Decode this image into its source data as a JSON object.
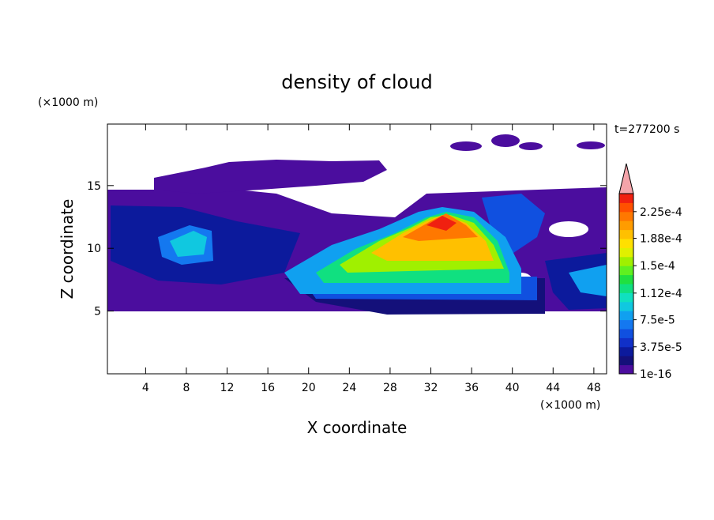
{
  "chart_data": {
    "type": "contour",
    "title": "density of cloud",
    "x_label": "X coordinate",
    "y_label": "Z coordinate",
    "x_unit": "(×1000 m)",
    "y_unit": "(×1000 m)",
    "time_label": "t=277200 s",
    "xlim": [
      0.25,
      49.25
    ],
    "ylim": [
      0,
      19.9
    ],
    "xticks": [
      4,
      8,
      12,
      16,
      20,
      24,
      28,
      32,
      36,
      40,
      44,
      48
    ],
    "yticks": [
      5,
      10,
      15
    ],
    "colorbar": {
      "clim": [
        1e-16,
        0.00025
      ],
      "ticks": [
        {
          "value": 1e-16,
          "label": "1e-16"
        },
        {
          "value": 3.75e-05,
          "label": "3.75e-5"
        },
        {
          "value": 7.5e-05,
          "label": "7.5e-5"
        },
        {
          "value": 0.000112,
          "label": "1.12e-4"
        },
        {
          "value": 0.00015,
          "label": "1.5e-4"
        },
        {
          "value": 0.000188,
          "label": "1.88e-4"
        },
        {
          "value": 0.000225,
          "label": "2.25e-4"
        }
      ],
      "colors": [
        "#4b0d9e",
        "#14107a",
        "#0c1a9c",
        "#1030c8",
        "#1050e0",
        "#1478f0",
        "#10a0f0",
        "#10c8e0",
        "#10e0c0",
        "#10e080",
        "#20e040",
        "#60f020",
        "#a0f000",
        "#e0f000",
        "#ffe000",
        "#ffc000",
        "#ff9c00",
        "#ff7800",
        "#ff5000",
        "#f02010"
      ],
      "extend_color": "#f4a4aa"
    }
  }
}
